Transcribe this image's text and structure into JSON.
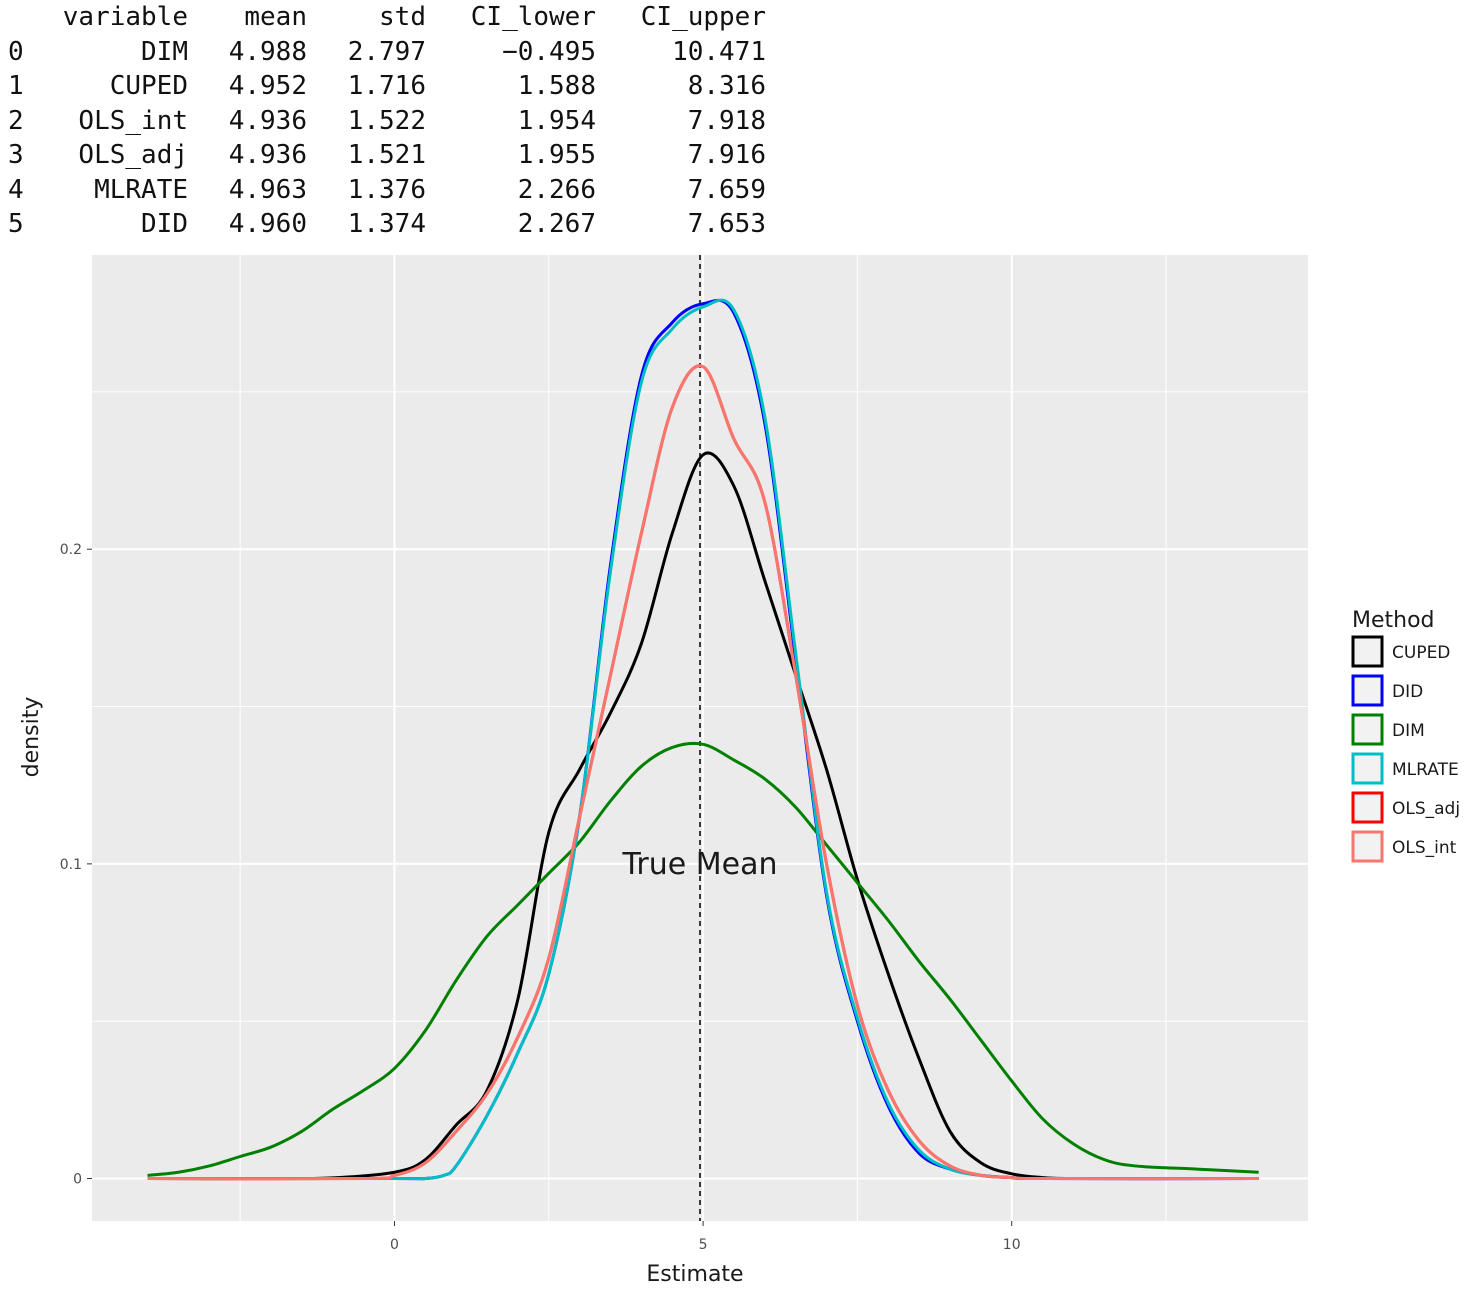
{
  "table": {
    "columns": [
      "",
      "variable",
      "mean",
      "std",
      "CI_lower",
      "CI_upper"
    ],
    "rows": [
      [
        "0",
        "DIM",
        "4.988",
        "2.797",
        "−0.495",
        "10.471"
      ],
      [
        "1",
        "CUPED",
        "4.952",
        "1.716",
        "1.588",
        "8.316"
      ],
      [
        "2",
        "OLS_int",
        "4.936",
        "1.522",
        "1.954",
        "7.918"
      ],
      [
        "3",
        "OLS_adj",
        "4.936",
        "1.521",
        "1.955",
        "7.916"
      ],
      [
        "4",
        "MLRATE",
        "4.963",
        "1.376",
        "2.266",
        "7.659"
      ],
      [
        "5",
        "DID",
        "4.960",
        "1.374",
        "2.267",
        "7.653"
      ]
    ]
  },
  "chart_data": {
    "type": "line",
    "xlabel": "Estimate",
    "ylabel": "density",
    "xlim": [
      -4.9,
      14.8
    ],
    "ylim": [
      -0.0135,
      0.2935
    ],
    "x_ticks": [
      0,
      5,
      10
    ],
    "x_tick_labels": [
      "0",
      "5",
      "10"
    ],
    "y_ticks": [
      0,
      0.1,
      0.2
    ],
    "y_tick_labels": [
      "0",
      "0.1",
      "0.2"
    ],
    "grid": true,
    "panel_background": "#ebebeb",
    "reference_line": {
      "x": 4.95,
      "style": "dashed",
      "color": "#000000"
    },
    "annotation": {
      "text": "True Mean",
      "x": 4.95,
      "y": 0.1
    },
    "legend": {
      "title": "Method",
      "position": "right"
    },
    "series": [
      {
        "name": "CUPED",
        "color": "#000000",
        "x": [
          -4,
          -2,
          -1,
          0,
          0.5,
          1,
          1.5,
          2,
          2.5,
          3,
          3.5,
          4,
          4.5,
          5,
          5.5,
          6,
          6.5,
          7,
          7.5,
          8,
          8.5,
          9,
          9.5,
          10,
          10.5,
          11,
          12,
          14
        ],
        "values": [
          0,
          0,
          0.0002,
          0.002,
          0.006,
          0.017,
          0.028,
          0.057,
          0.11,
          0.13,
          0.148,
          0.17,
          0.205,
          0.23,
          0.22,
          0.19,
          0.16,
          0.13,
          0.095,
          0.065,
          0.038,
          0.015,
          0.005,
          0.0015,
          0.0003,
          0,
          0,
          0
        ]
      },
      {
        "name": "DID",
        "color": "#0000ff",
        "x": [
          -4,
          0,
          0.5,
          0.8,
          1,
          1.5,
          2,
          2.5,
          3,
          3.5,
          4,
          4.5,
          5,
          5.5,
          6,
          6.5,
          7,
          7.5,
          8,
          8.5,
          9,
          9.5,
          10,
          10.5,
          14
        ],
        "values": [
          0,
          0,
          0,
          0.001,
          0.004,
          0.02,
          0.04,
          0.065,
          0.115,
          0.195,
          0.255,
          0.272,
          0.278,
          0.275,
          0.24,
          0.165,
          0.09,
          0.05,
          0.023,
          0.008,
          0.003,
          0.001,
          0.0003,
          0,
          0
        ]
      },
      {
        "name": "DIM",
        "color": "#008000",
        "x": [
          -4,
          -3.5,
          -3,
          -2.5,
          -2,
          -1.5,
          -1,
          -0.5,
          0,
          0.5,
          1,
          1.5,
          2,
          2.5,
          3,
          3.5,
          4,
          4.5,
          5,
          5.5,
          6,
          6.5,
          7,
          7.5,
          8,
          8.5,
          9,
          9.5,
          10,
          10.5,
          11,
          11.5,
          12,
          13,
          14
        ],
        "values": [
          0.001,
          0.002,
          0.004,
          0.007,
          0.01,
          0.015,
          0.022,
          0.028,
          0.035,
          0.047,
          0.063,
          0.077,
          0.087,
          0.097,
          0.107,
          0.12,
          0.131,
          0.137,
          0.138,
          0.133,
          0.127,
          0.118,
          0.106,
          0.094,
          0.082,
          0.069,
          0.057,
          0.044,
          0.031,
          0.019,
          0.011,
          0.006,
          0.004,
          0.003,
          0.002
        ]
      },
      {
        "name": "MLRATE",
        "color": "#00bfc4",
        "x": [
          -4,
          0,
          0.5,
          0.8,
          1,
          1.5,
          2,
          2.5,
          3,
          3.5,
          4,
          4.5,
          5,
          5.5,
          6,
          6.5,
          7,
          7.5,
          8,
          8.5,
          9,
          9.5,
          10,
          10.5,
          14
        ],
        "values": [
          0,
          0,
          0,
          0.001,
          0.004,
          0.02,
          0.04,
          0.065,
          0.115,
          0.193,
          0.253,
          0.27,
          0.277,
          0.276,
          0.242,
          0.167,
          0.091,
          0.051,
          0.024,
          0.009,
          0.003,
          0.001,
          0.0003,
          0,
          0
        ]
      },
      {
        "name": "OLS_adj",
        "color": "#ff0000",
        "x": [
          -4,
          -0.5,
          0,
          0.5,
          1,
          1.5,
          2,
          2.5,
          3,
          3.5,
          4,
          4.5,
          5,
          5.5,
          6,
          6.5,
          7,
          7.5,
          8,
          8.5,
          9,
          9.5,
          10,
          10.5,
          14
        ],
        "values": [
          0,
          0,
          0.001,
          0.005,
          0.015,
          0.027,
          0.045,
          0.07,
          0.115,
          0.16,
          0.205,
          0.245,
          0.258,
          0.235,
          0.215,
          0.16,
          0.1,
          0.055,
          0.028,
          0.012,
          0.004,
          0.001,
          0.0003,
          0,
          0
        ]
      },
      {
        "name": "OLS_int",
        "color": "#f8766d",
        "x": [
          -4,
          -0.5,
          0,
          0.5,
          1,
          1.5,
          2,
          2.5,
          3,
          3.5,
          4,
          4.5,
          5,
          5.5,
          6,
          6.5,
          7,
          7.5,
          8,
          8.5,
          9,
          9.5,
          10,
          10.5,
          14
        ],
        "values": [
          0,
          0,
          0.001,
          0.005,
          0.015,
          0.027,
          0.045,
          0.07,
          0.115,
          0.16,
          0.205,
          0.245,
          0.258,
          0.235,
          0.215,
          0.16,
          0.1,
          0.055,
          0.028,
          0.012,
          0.004,
          0.001,
          0.0003,
          0,
          0
        ]
      }
    ]
  }
}
